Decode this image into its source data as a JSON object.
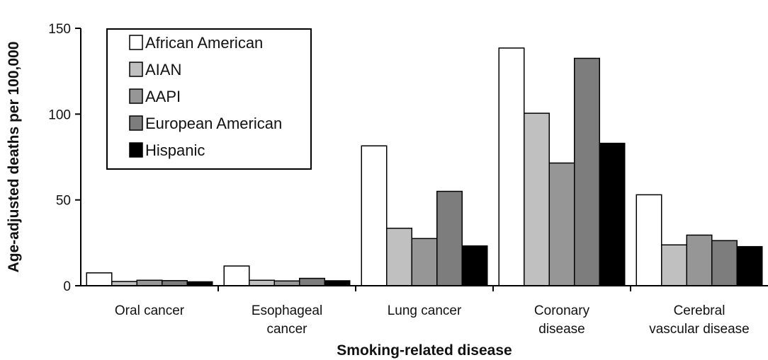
{
  "chart_data": {
    "type": "bar",
    "title": "",
    "xlabel": "Smoking-related disease",
    "ylabel": "Age-adjusted deaths per 100,000",
    "ylim": [
      0,
      150
    ],
    "yticks": [
      0,
      50,
      100,
      150
    ],
    "grid": false,
    "legend_position": "top-left",
    "categories": [
      [
        "Oral cancer"
      ],
      [
        "Esophageal",
        "cancer"
      ],
      [
        "Lung cancer"
      ],
      [
        "Coronary",
        "disease"
      ],
      [
        "Cerebral",
        "vascular disease"
      ]
    ],
    "series": [
      {
        "name": "African American",
        "color": "#ffffff",
        "values": [
          7.5,
          11.5,
          81.5,
          138.5,
          53
        ]
      },
      {
        "name": "AIAN",
        "color": "#c0c0c0",
        "values": [
          2.5,
          3.2,
          33.5,
          100.5,
          23.8
        ]
      },
      {
        "name": "AAPI",
        "color": "#969696",
        "values": [
          3.2,
          2.8,
          27.5,
          71.5,
          29.5
        ]
      },
      {
        "name": "European American",
        "color": "#7d7d7d",
        "values": [
          3.0,
          4.3,
          55,
          132.5,
          26.3
        ]
      },
      {
        "name": "Hispanic",
        "color": "#000000",
        "values": [
          2.3,
          2.9,
          23.2,
          83,
          22.8
        ]
      }
    ]
  }
}
